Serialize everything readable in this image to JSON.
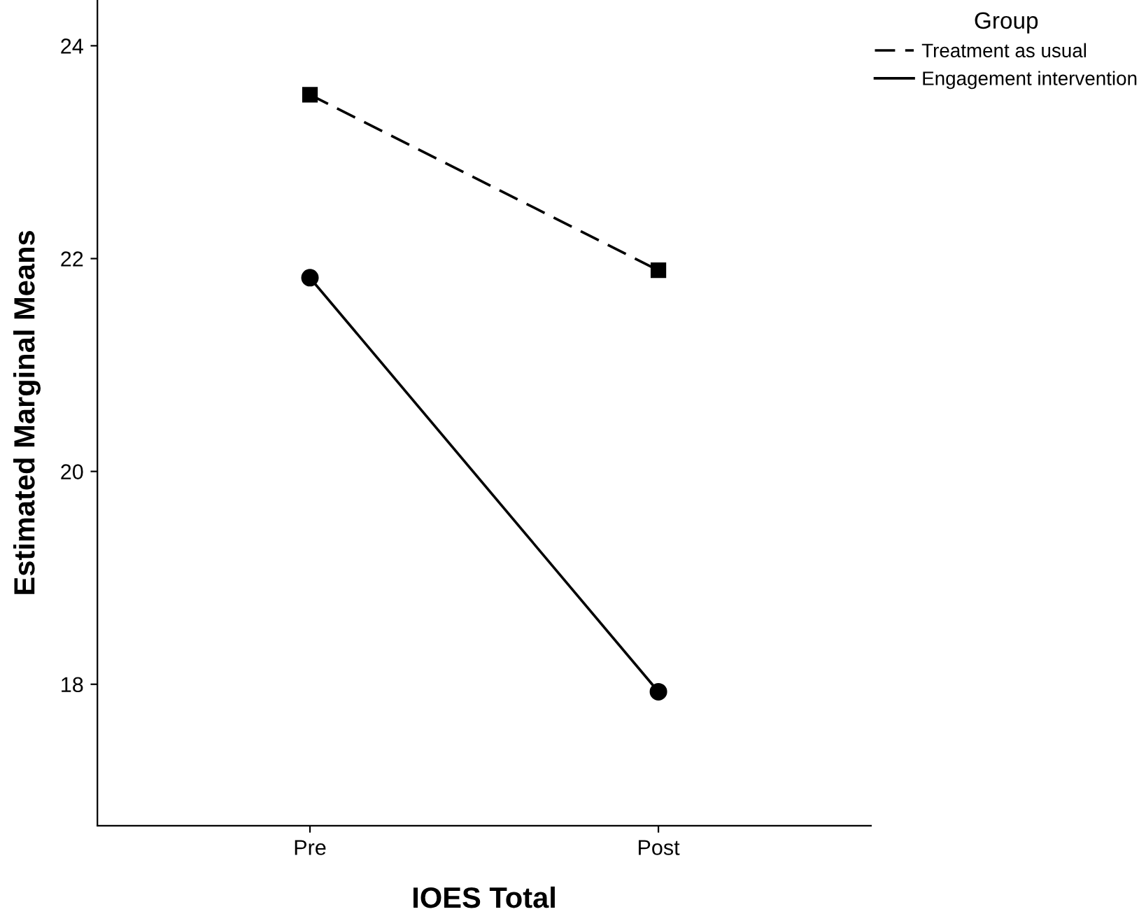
{
  "chart_data": {
    "type": "line",
    "xlabel": "IOES Total",
    "ylabel": "Estimated Marginal Means",
    "legend_title": "Group",
    "legend": "top right",
    "categories": [
      "Pre",
      "Post"
    ],
    "series": [
      {
        "name": "Treatment as usual",
        "color": "#000000",
        "values": [
          23.54,
          21.89
        ],
        "marker": "square",
        "line_style": "dashed"
      },
      {
        "name": "Engagement intervention",
        "color": "#000000",
        "values": [
          21.82,
          17.93
        ],
        "marker": "circle",
        "line_style": "solid"
      }
    ],
    "ylim": [
      16.67,
      24.43
    ],
    "yticks": [
      18,
      20,
      22,
      24
    ],
    "grid": false
  }
}
